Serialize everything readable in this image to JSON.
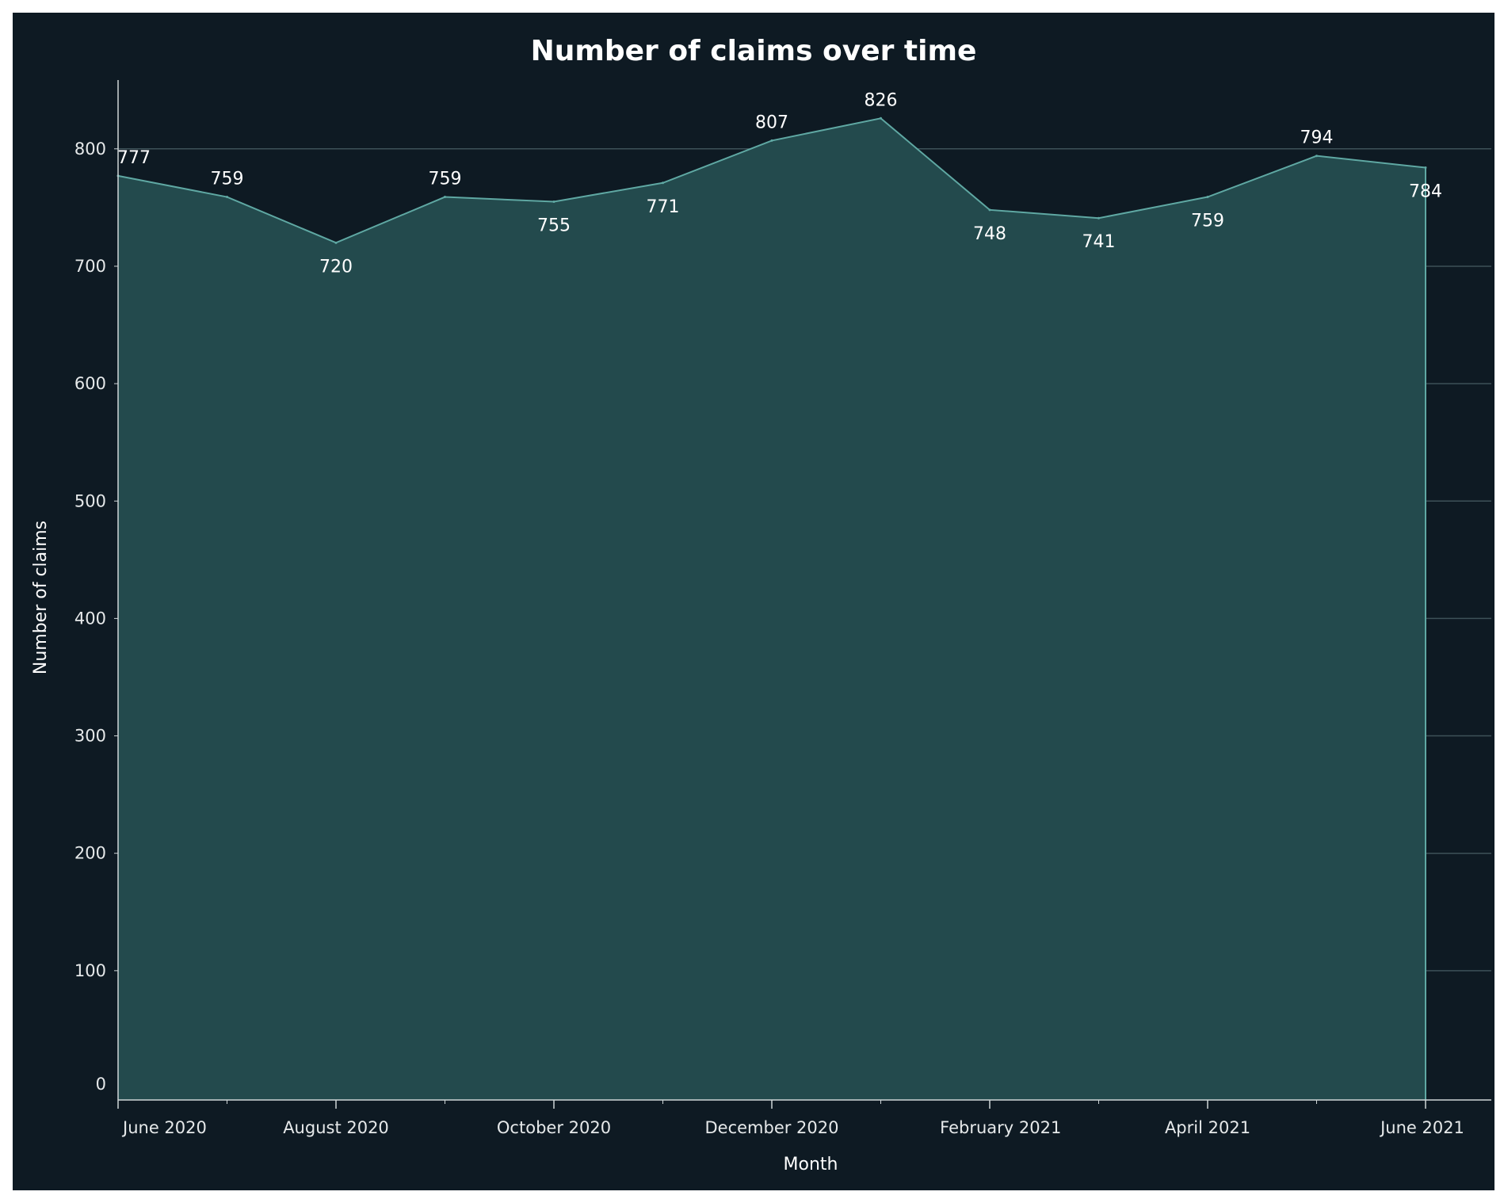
{
  "chart_data": {
    "type": "area",
    "title": "Number of claims over time",
    "xlabel": "Month",
    "ylabel": "Number of claims",
    "x": [
      "2020-06",
      "2020-07",
      "2020-08",
      "2020-09",
      "2020-10",
      "2020-11",
      "2020-12",
      "2021-01",
      "2021-02",
      "2021-03",
      "2021-04",
      "2021-05",
      "2021-06"
    ],
    "values": [
      777,
      759,
      720,
      759,
      755,
      771,
      807,
      826,
      748,
      741,
      759,
      794,
      784
    ],
    "x_tick_labels": [
      "June 2020",
      "August 2020",
      "October 2020",
      "December 2020",
      "February 2021",
      "April 2021",
      "June 2021"
    ],
    "y_ticks": [
      0,
      100,
      200,
      300,
      400,
      500,
      600,
      700,
      800
    ],
    "ylim": [
      0,
      866
    ],
    "grid": true,
    "legend": "none",
    "colors": {
      "background": "#0e1a23",
      "area_fill": "#234a4d",
      "line": "#5fa8a3",
      "gridline": "#3d5158",
      "text": "#ffffff"
    }
  }
}
